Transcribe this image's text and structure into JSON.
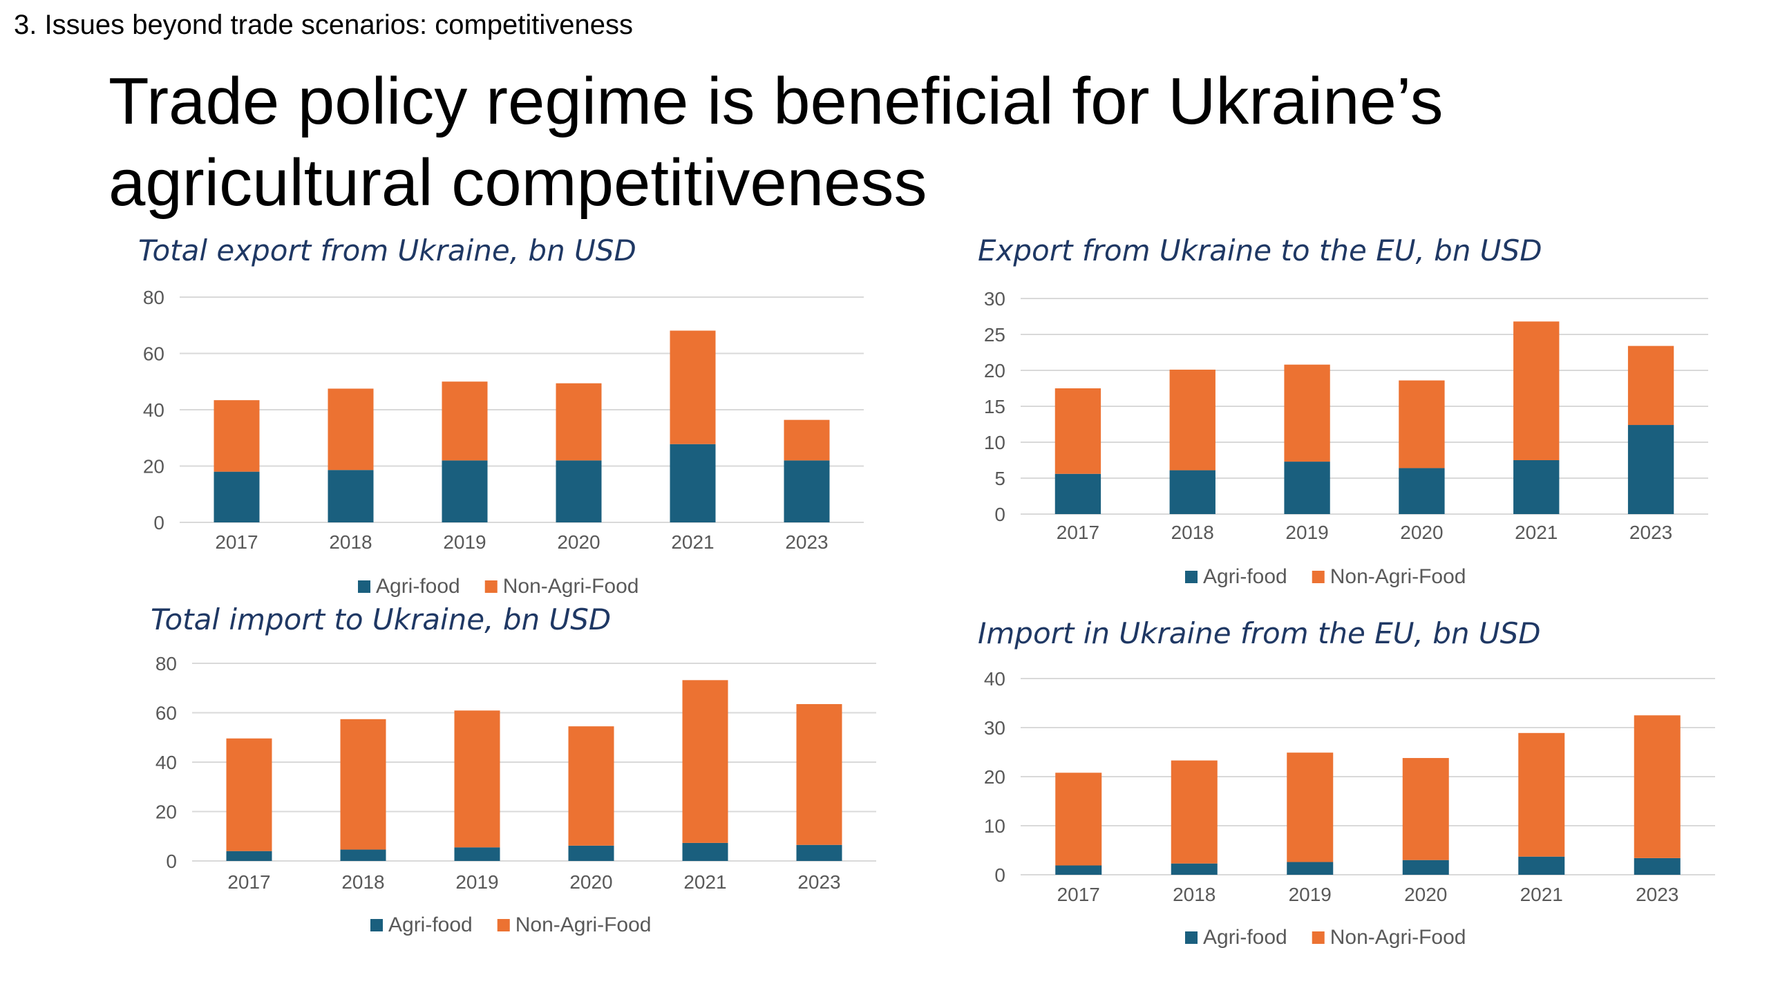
{
  "slide": {
    "section_label": "3. Issues beyond trade scenarios: competitiveness",
    "title_line1": "Trade policy regime is beneficial for Ukraine’s",
    "title_line2": "agricultural competitiveness"
  },
  "colors": {
    "agri": "#1a5f7e",
    "nonagri": "#ec7232",
    "grid": "#d9d9d9",
    "axis_text": "#595959",
    "chart_title": "#1f3864"
  },
  "chart_data": [
    {
      "type": "bar",
      "stacked": true,
      "title": "Total export from Ukraine, bn USD",
      "categories": [
        "2017",
        "2018",
        "2019",
        "2020",
        "2021",
        "2023"
      ],
      "series": [
        {
          "name": "Agri-food",
          "values": [
            18,
            18.6,
            22,
            22,
            27.8,
            22
          ]
        },
        {
          "name": "Non-Agri-Food",
          "values": [
            25.4,
            28.9,
            28,
            27.4,
            40.3,
            14.4
          ]
        }
      ],
      "ylim": [
        0,
        80
      ],
      "yticks": [
        "0",
        "20",
        "40",
        "60",
        "80"
      ],
      "grid": true,
      "legend": "bottom"
    },
    {
      "type": "bar",
      "stacked": true,
      "title": "Export from Ukraine to the EU, bn USD",
      "categories": [
        "2017",
        "2018",
        "2019",
        "2020",
        "2021",
        "2023"
      ],
      "series": [
        {
          "name": "Agri-food",
          "values": [
            5.6,
            6.1,
            7.3,
            6.4,
            7.5,
            12.4
          ]
        },
        {
          "name": "Non-Agri-Food",
          "values": [
            11.9,
            14,
            13.5,
            12.2,
            19.3,
            11
          ]
        }
      ],
      "ylim": [
        0,
        30
      ],
      "yticks": [
        "0",
        "5",
        "10",
        "15",
        "20",
        "25",
        "30"
      ],
      "grid": true,
      "legend": "bottom"
    },
    {
      "type": "bar",
      "stacked": true,
      "title": "Total import to Ukraine, bn USD",
      "categories": [
        "2017",
        "2018",
        "2019",
        "2020",
        "2021",
        "2023"
      ],
      "series": [
        {
          "name": "Agri-food",
          "values": [
            4,
            4.6,
            5.5,
            6.2,
            7.3,
            6.5
          ]
        },
        {
          "name": "Non-Agri-Food",
          "values": [
            45.6,
            52.8,
            55.4,
            48.3,
            65.9,
            57
          ]
        }
      ],
      "ylim": [
        0,
        80
      ],
      "yticks": [
        "0",
        "20",
        "40",
        "60",
        "80"
      ],
      "grid": true,
      "legend": "bottom"
    },
    {
      "type": "bar",
      "stacked": true,
      "title": "Import in Ukraine from the EU, bn USD",
      "categories": [
        "2017",
        "2018",
        "2019",
        "2020",
        "2021",
        "2023"
      ],
      "series": [
        {
          "name": "Agri-food",
          "values": [
            1.9,
            2.3,
            2.6,
            3,
            3.7,
            3.4
          ]
        },
        {
          "name": "Non-Agri-Food",
          "values": [
            18.9,
            21,
            22.3,
            20.8,
            25.2,
            29.1
          ]
        }
      ],
      "ylim": [
        0,
        40
      ],
      "yticks": [
        "0",
        "10",
        "20",
        "30",
        "40"
      ],
      "grid": true,
      "legend": "bottom"
    }
  ]
}
